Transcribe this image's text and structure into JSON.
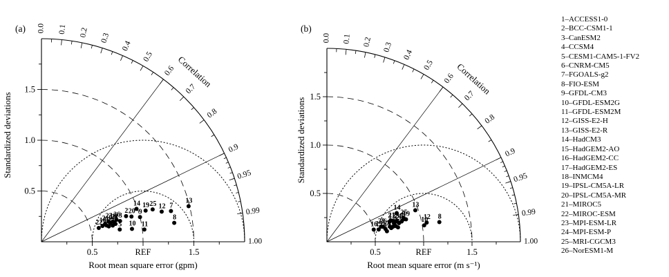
{
  "figure": {
    "background": "#ffffff",
    "ink": "#000000"
  },
  "chart_data": {
    "type": "scatter",
    "variant": "taylor-diagram",
    "ylabel": "Standardized deviations",
    "correlation_axis_label": "Correlation",
    "correlation_ticks": [
      {
        "v": 0.0,
        "label": "0.0"
      },
      {
        "v": 0.1,
        "label": "0.1"
      },
      {
        "v": 0.2,
        "label": "0.2"
      },
      {
        "v": 0.3,
        "label": "0.3"
      },
      {
        "v": 0.4,
        "label": "0.4"
      },
      {
        "v": 0.5,
        "label": "0.5"
      },
      {
        "v": 0.6,
        "label": "0.6"
      },
      {
        "v": 0.7,
        "label": "0.7"
      },
      {
        "v": 0.8,
        "label": "0.8"
      },
      {
        "v": 0.9,
        "label": "0.9"
      },
      {
        "v": 0.95,
        "label": "0.95"
      },
      {
        "v": 0.99,
        "label": "0.99"
      },
      {
        "v": 1.0,
        "label": "1.00"
      }
    ],
    "x_ticks": [
      {
        "v": 0.5,
        "label": "0.5"
      },
      {
        "v": 1.0,
        "label": "REF"
      },
      {
        "v": 1.5,
        "label": "1.5"
      }
    ],
    "y_ticks": [
      {
        "v": 0.5,
        "label": "0.5"
      },
      {
        "v": 1.0,
        "label": "1.0"
      },
      {
        "v": 1.5,
        "label": "1.5"
      }
    ],
    "outer_radius": 2.0,
    "ref_std": 1.0,
    "std_arcs_dashed": [
      0.5,
      1.0,
      1.5
    ],
    "rms_arcs_dotted": [
      0.5,
      1.0
    ],
    "radial_lines_at_corr": [
      0.6,
      0.9
    ],
    "legend_separator": "–",
    "models": [
      {
        "id": 1,
        "name": "ACCESS1-0"
      },
      {
        "id": 2,
        "name": "BCC-CSM1-1"
      },
      {
        "id": 3,
        "name": "CanESM2"
      },
      {
        "id": 4,
        "name": "CCSM4"
      },
      {
        "id": 5,
        "name": "CESM1-CAM5-1-FV2"
      },
      {
        "id": 6,
        "name": "CNRM-CM5"
      },
      {
        "id": 7,
        "name": "FGOALS-g2"
      },
      {
        "id": 8,
        "name": "FIO-ESM"
      },
      {
        "id": 9,
        "name": "GFDL-CM3"
      },
      {
        "id": 10,
        "name": "GFDL-ESM2G"
      },
      {
        "id": 11,
        "name": "GFDL-ESM2M"
      },
      {
        "id": 12,
        "name": "GISS-E2-H"
      },
      {
        "id": 13,
        "name": "GISS-E2-R"
      },
      {
        "id": 14,
        "name": "HadCM3"
      },
      {
        "id": 15,
        "name": "HadGEM2-AO"
      },
      {
        "id": 16,
        "name": "HadGEM2-CC"
      },
      {
        "id": 17,
        "name": "HadGEM2-ES"
      },
      {
        "id": 18,
        "name": "INMCM4"
      },
      {
        "id": 19,
        "name": "IPSL-CM5A-LR"
      },
      {
        "id": 20,
        "name": "IPSL-CM5A-MR"
      },
      {
        "id": 21,
        "name": "MIROC5"
      },
      {
        "id": 22,
        "name": "MIROC-ESM"
      },
      {
        "id": 23,
        "name": "MPI-ESM-LR"
      },
      {
        "id": 24,
        "name": "MPI-ESM-P"
      },
      {
        "id": 25,
        "name": "MRI-CGCM3"
      },
      {
        "id": 26,
        "name": "NorESM1-M"
      }
    ],
    "panels": [
      {
        "label": "(a)",
        "xlabel": "Root mean square error (gpm)",
        "points": [
          {
            "id": 1,
            "std": 0.72,
            "corr": 0.975
          },
          {
            "id": 2,
            "std": 0.87,
            "corr": 0.957
          },
          {
            "id": 3,
            "std": 0.8,
            "corr": 0.967
          },
          {
            "id": 4,
            "std": 0.75,
            "corr": 0.972
          },
          {
            "id": 5,
            "std": 0.78,
            "corr": 0.988
          },
          {
            "id": 6,
            "std": 0.7,
            "corr": 0.965
          },
          {
            "id": 7,
            "std": 1.31,
            "corr": 0.973
          },
          {
            "id": 8,
            "std": 1.32,
            "corr": 0.99
          },
          {
            "id": 9,
            "std": 1.0,
            "corr": 0.97
          },
          {
            "id": 10,
            "std": 0.9,
            "corr": 0.99
          },
          {
            "id": 11,
            "std": 1.02,
            "corr": 0.993
          },
          {
            "id": 12,
            "std": 1.22,
            "corr": 0.97
          },
          {
            "id": 13,
            "std": 1.49,
            "corr": 0.972
          },
          {
            "id": 14,
            "std": 0.99,
            "corr": 0.945
          },
          {
            "id": 15,
            "std": 0.68,
            "corr": 0.975
          },
          {
            "id": 16,
            "std": 0.62,
            "corr": 0.968
          },
          {
            "id": 17,
            "std": 0.66,
            "corr": 0.97
          },
          {
            "id": 18,
            "std": 0.73,
            "corr": 0.962
          },
          {
            "id": 19,
            "std": 1.07,
            "corr": 0.958
          },
          {
            "id": 20,
            "std": 0.92,
            "corr": 0.963
          },
          {
            "id": 21,
            "std": 0.65,
            "corr": 0.963
          },
          {
            "id": 22,
            "std": 0.58,
            "corr": 0.972
          },
          {
            "id": 23,
            "std": 0.69,
            "corr": 0.957
          },
          {
            "id": 24,
            "std": 0.74,
            "corr": 0.966
          },
          {
            "id": 25,
            "std": 1.14,
            "corr": 0.96
          },
          {
            "id": 26,
            "std": 0.77,
            "corr": 0.96
          }
        ]
      },
      {
        "label": "(b)",
        "xlabel": "Root mean square error (m s⁻¹)",
        "points": [
          {
            "id": 1,
            "std": 0.7,
            "corr": 0.975
          },
          {
            "id": 2,
            "std": 0.72,
            "corr": 0.968
          },
          {
            "id": 3,
            "std": 0.68,
            "corr": 0.952
          },
          {
            "id": 4,
            "std": 0.73,
            "corr": 0.975
          },
          {
            "id": 5,
            "std": 0.75,
            "corr": 0.98
          },
          {
            "id": 6,
            "std": 0.67,
            "corr": 0.972
          },
          {
            "id": 7,
            "std": 0.8,
            "corr": 0.965
          },
          {
            "id": 8,
            "std": 1.18,
            "corr": 0.985
          },
          {
            "id": 9,
            "std": 0.82,
            "corr": 0.96
          },
          {
            "id": 10,
            "std": 1.02,
            "corr": 0.986
          },
          {
            "id": 11,
            "std": 0.63,
            "corr": 0.985
          },
          {
            "id": 12,
            "std": 1.05,
            "corr": 0.982
          },
          {
            "id": 13,
            "std": 0.97,
            "corr": 0.942
          },
          {
            "id": 14,
            "std": 0.78,
            "corr": 0.925
          },
          {
            "id": 15,
            "std": 0.55,
            "corr": 0.973
          },
          {
            "id": 16,
            "std": 0.5,
            "corr": 0.968
          },
          {
            "id": 17,
            "std": 0.62,
            "corr": 0.977
          },
          {
            "id": 18,
            "std": 0.68,
            "corr": 0.978
          },
          {
            "id": 19,
            "std": 0.85,
            "corr": 0.962
          },
          {
            "id": 20,
            "std": 0.77,
            "corr": 0.968
          },
          {
            "id": 21,
            "std": 0.7,
            "corr": 0.95
          },
          {
            "id": 22,
            "std": 0.58,
            "corr": 0.963
          },
          {
            "id": 23,
            "std": 0.74,
            "corr": 0.958
          },
          {
            "id": 24,
            "std": 0.76,
            "corr": 0.962
          },
          {
            "id": 25,
            "std": 0.83,
            "corr": 0.955
          },
          {
            "id": 26,
            "std": 0.6,
            "corr": 0.966
          }
        ]
      }
    ]
  }
}
